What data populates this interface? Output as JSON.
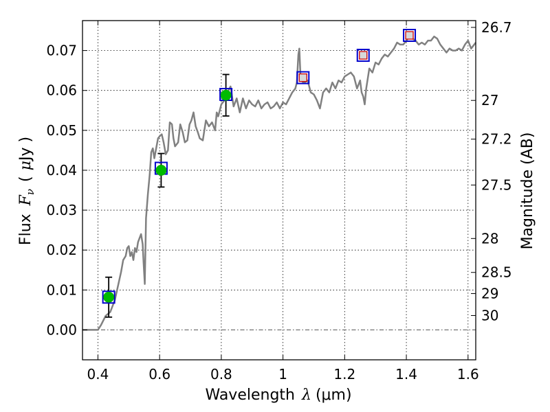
{
  "chart_data": {
    "type": "line",
    "x_axis": {
      "label_text": "Wavelength",
      "label_symbol": "λ",
      "label_unit": "(μm)",
      "range": [
        0.35,
        1.625
      ],
      "ticks": [
        0.4,
        0.6,
        0.8,
        1.0,
        1.2,
        1.4,
        1.6
      ],
      "tick_labels": [
        "0.4",
        "0.6",
        "0.8",
        "1",
        "1.2",
        "1.4",
        "1.6"
      ]
    },
    "y_axis": {
      "label_text": "Flux",
      "label_symbol": "F",
      "label_subscript": "ν",
      "label_unit_open": "(",
      "label_unit_mu": "μ",
      "label_unit_rest": "Jy )",
      "range": [
        -0.0075,
        0.0775
      ],
      "ticks": [
        0.0,
        0.01,
        0.02,
        0.03,
        0.04,
        0.05,
        0.06,
        0.07
      ],
      "tick_labels": [
        "0.00",
        "0.01",
        "0.02",
        "0.03",
        "0.04",
        "0.05",
        "0.06",
        "0.07"
      ]
    },
    "y2_axis": {
      "label": "Magnitude (AB)",
      "ticks": [
        {
          "label": "26.7",
          "flux": 0.0758
        },
        {
          "label": "27",
          "flux": 0.0575
        },
        {
          "label": "27.2",
          "flux": 0.0478
        },
        {
          "label": "27.5",
          "flux": 0.0363
        },
        {
          "label": "28",
          "flux": 0.0229
        },
        {
          "label": "28.5",
          "flux": 0.0144
        },
        {
          "label": "29",
          "flux": 0.0091
        },
        {
          "label": "30",
          "flux": 0.0036
        }
      ]
    },
    "grid": true,
    "zero_line": true,
    "series": [
      {
        "kind": "model-spectrum",
        "color": "#808080",
        "points": [
          [
            0.35,
            0.0
          ],
          [
            0.4,
            0.0
          ],
          [
            0.41,
            0.0012
          ],
          [
            0.425,
            0.0035
          ],
          [
            0.44,
            0.0045
          ],
          [
            0.455,
            0.0075
          ],
          [
            0.465,
            0.011
          ],
          [
            0.475,
            0.0145
          ],
          [
            0.482,
            0.0175
          ],
          [
            0.49,
            0.0185
          ],
          [
            0.495,
            0.0205
          ],
          [
            0.5,
            0.021
          ],
          [
            0.505,
            0.0185
          ],
          [
            0.51,
            0.0195
          ],
          [
            0.515,
            0.0175
          ],
          [
            0.52,
            0.0205
          ],
          [
            0.525,
            0.0195
          ],
          [
            0.53,
            0.022
          ],
          [
            0.535,
            0.023
          ],
          [
            0.54,
            0.024
          ],
          [
            0.545,
            0.0215
          ],
          [
            0.548,
            0.017
          ],
          [
            0.552,
            0.0115
          ],
          [
            0.556,
            0.028
          ],
          [
            0.562,
            0.034
          ],
          [
            0.568,
            0.039
          ],
          [
            0.573,
            0.0445
          ],
          [
            0.578,
            0.0455
          ],
          [
            0.583,
            0.043
          ],
          [
            0.59,
            0.046
          ],
          [
            0.595,
            0.048
          ],
          [
            0.6,
            0.0485
          ],
          [
            0.607,
            0.049
          ],
          [
            0.613,
            0.047
          ],
          [
            0.62,
            0.044
          ],
          [
            0.627,
            0.045
          ],
          [
            0.633,
            0.052
          ],
          [
            0.64,
            0.0515
          ],
          [
            0.645,
            0.048
          ],
          [
            0.65,
            0.046
          ],
          [
            0.66,
            0.047
          ],
          [
            0.667,
            0.0515
          ],
          [
            0.675,
            0.0495
          ],
          [
            0.682,
            0.047
          ],
          [
            0.69,
            0.0475
          ],
          [
            0.697,
            0.0515
          ],
          [
            0.703,
            0.0525
          ],
          [
            0.71,
            0.0545
          ],
          [
            0.717,
            0.051
          ],
          [
            0.724,
            0.0495
          ],
          [
            0.73,
            0.048
          ],
          [
            0.74,
            0.0475
          ],
          [
            0.75,
            0.0525
          ],
          [
            0.76,
            0.051
          ],
          [
            0.77,
            0.052
          ],
          [
            0.78,
            0.05
          ],
          [
            0.785,
            0.0545
          ],
          [
            0.79,
            0.0535
          ],
          [
            0.8,
            0.0565
          ],
          [
            0.81,
            0.0575
          ],
          [
            0.82,
            0.0595
          ],
          [
            0.83,
            0.061
          ],
          [
            0.84,
            0.056
          ],
          [
            0.85,
            0.058
          ],
          [
            0.86,
            0.0545
          ],
          [
            0.87,
            0.058
          ],
          [
            0.88,
            0.0555
          ],
          [
            0.89,
            0.0575
          ],
          [
            0.9,
            0.0565
          ],
          [
            0.91,
            0.056
          ],
          [
            0.92,
            0.0575
          ],
          [
            0.93,
            0.0555
          ],
          [
            0.94,
            0.0565
          ],
          [
            0.95,
            0.057
          ],
          [
            0.96,
            0.0555
          ],
          [
            0.97,
            0.056
          ],
          [
            0.98,
            0.057
          ],
          [
            0.99,
            0.0555
          ],
          [
            1.0,
            0.057
          ],
          [
            1.01,
            0.0565
          ],
          [
            1.02,
            0.058
          ],
          [
            1.03,
            0.0595
          ],
          [
            1.04,
            0.0605
          ],
          [
            1.045,
            0.062
          ],
          [
            1.05,
            0.069
          ],
          [
            1.053,
            0.0705
          ],
          [
            1.057,
            0.063
          ],
          [
            1.065,
            0.062
          ],
          [
            1.07,
            0.062
          ],
          [
            1.08,
            0.0625
          ],
          [
            1.09,
            0.0595
          ],
          [
            1.1,
            0.059
          ],
          [
            1.11,
            0.0575
          ],
          [
            1.12,
            0.0555
          ],
          [
            1.13,
            0.0595
          ],
          [
            1.14,
            0.0605
          ],
          [
            1.15,
            0.0595
          ],
          [
            1.16,
            0.062
          ],
          [
            1.17,
            0.0605
          ],
          [
            1.18,
            0.0625
          ],
          [
            1.19,
            0.062
          ],
          [
            1.2,
            0.0635
          ],
          [
            1.21,
            0.064
          ],
          [
            1.22,
            0.0645
          ],
          [
            1.23,
            0.0635
          ],
          [
            1.24,
            0.0605
          ],
          [
            1.25,
            0.0625
          ],
          [
            1.255,
            0.0595
          ],
          [
            1.26,
            0.0585
          ],
          [
            1.265,
            0.0565
          ],
          [
            1.27,
            0.0605
          ],
          [
            1.28,
            0.0655
          ],
          [
            1.29,
            0.0645
          ],
          [
            1.3,
            0.067
          ],
          [
            1.31,
            0.0665
          ],
          [
            1.32,
            0.068
          ],
          [
            1.33,
            0.069
          ],
          [
            1.34,
            0.0685
          ],
          [
            1.35,
            0.0695
          ],
          [
            1.36,
            0.0705
          ],
          [
            1.37,
            0.072
          ],
          [
            1.38,
            0.0715
          ],
          [
            1.39,
            0.0715
          ],
          [
            1.4,
            0.0725
          ],
          [
            1.41,
            0.0735
          ],
          [
            1.42,
            0.073
          ],
          [
            1.43,
            0.0725
          ],
          [
            1.44,
            0.0715
          ],
          [
            1.45,
            0.072
          ],
          [
            1.46,
            0.0715
          ],
          [
            1.47,
            0.0725
          ],
          [
            1.48,
            0.0725
          ],
          [
            1.49,
            0.0735
          ],
          [
            1.5,
            0.073
          ],
          [
            1.51,
            0.0715
          ],
          [
            1.52,
            0.0705
          ],
          [
            1.53,
            0.0695
          ],
          [
            1.54,
            0.0705
          ],
          [
            1.55,
            0.07
          ],
          [
            1.56,
            0.07
          ],
          [
            1.57,
            0.0705
          ],
          [
            1.58,
            0.07
          ],
          [
            1.59,
            0.0715
          ],
          [
            1.6,
            0.0725
          ],
          [
            1.61,
            0.0705
          ],
          [
            1.625,
            0.072
          ]
        ]
      },
      {
        "kind": "model-photometry",
        "marker": "open-square",
        "color": "#0000cc",
        "points": [
          [
            0.435,
            0.0082
          ],
          [
            0.605,
            0.0405
          ],
          [
            0.815,
            0.059
          ],
          [
            1.065,
            0.0632
          ],
          [
            1.26,
            0.0688
          ],
          [
            1.41,
            0.0738
          ]
        ]
      },
      {
        "kind": "observed-detections",
        "marker": "filled-circle",
        "color": "#00bb00",
        "points": [
          {
            "x": 0.435,
            "y": 0.0082,
            "err": 0.005
          },
          {
            "x": 0.605,
            "y": 0.04,
            "err": 0.0042
          },
          {
            "x": 0.815,
            "y": 0.0588,
            "err": 0.0052
          }
        ]
      },
      {
        "kind": "upper-limits",
        "marker": "small-square",
        "color": "#cc0000",
        "points": [
          [
            1.065,
            0.0632
          ],
          [
            1.26,
            0.0688
          ],
          [
            1.41,
            0.0738
          ]
        ]
      }
    ]
  }
}
